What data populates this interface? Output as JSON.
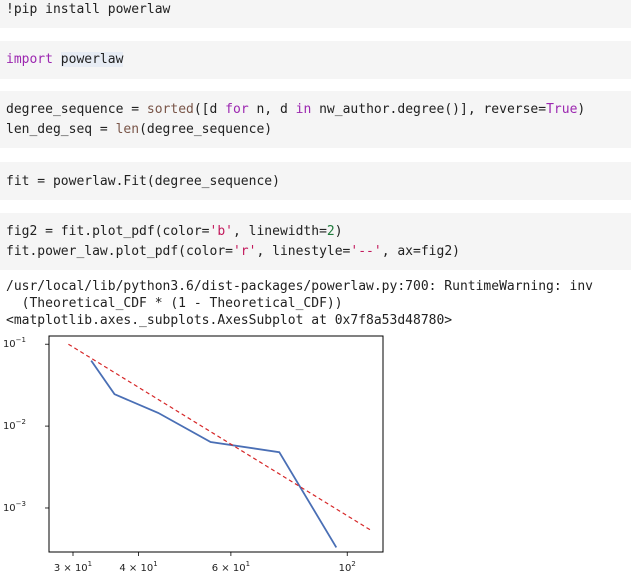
{
  "cells": {
    "c1": {
      "pre": "!pip install powerlaw"
    },
    "c2": {
      "kw": "import",
      "mod": "powerlaw"
    },
    "c3": {
      "a1": "degree_sequence = ",
      "fn_sorted": "sorted",
      "a2": "([d ",
      "kw_for": "for",
      "a3": " n, d ",
      "kw_in": "in",
      "a4": " nw_author.degree()], reverse=",
      "kw_true": "True",
      "a5": ")",
      "b1": "len_deg_seq = ",
      "fn_len": "len",
      "b2": "(degree_sequence)"
    },
    "c4": {
      "pre": "fit = powerlaw.Fit(degree_sequence)"
    },
    "c5": {
      "a1": "fig2 = fit.plot_pdf(color=",
      "s_b": "'b'",
      "a2": ", linewidth=",
      "n2": "2",
      "a3": ")",
      "b1": "fit.power_law.plot_pdf(color=",
      "s_r": "'r'",
      "b2": ", linestyle=",
      "s_ls": "'--'",
      "b3": ", ax=fig2)"
    }
  },
  "output": {
    "warning": "/usr/local/lib/python3.6/dist-packages/powerlaw.py:700: RuntimeWarning: inv",
    "cdf": "  (Theoretical_CDF * (1 - Theoretical_CDF))",
    "repr": "<matplotlib.axes._subplots.AxesSubplot at 0x7f8a53d48780>"
  },
  "chart_data": {
    "type": "line",
    "x_scale": "log",
    "y_scale": "log",
    "xlim": [
      27,
      117
    ],
    "ylim": [
      0.00029,
      0.126
    ],
    "xticks": [
      {
        "value": 30,
        "base": "3 × 10",
        "exp": "1"
      },
      {
        "value": 40,
        "base": "4 × 10",
        "exp": "1"
      },
      {
        "value": 60,
        "base": "6 × 10",
        "exp": "1"
      },
      {
        "value": 100,
        "base": "10",
        "exp": "2"
      }
    ],
    "yticks": [
      {
        "value": 0.1,
        "base": "10",
        "exp": "−1"
      },
      {
        "value": 0.01,
        "base": "10",
        "exp": "−2"
      },
      {
        "value": 0.001,
        "base": "10",
        "exp": "−3"
      }
    ],
    "grid": false,
    "series": [
      {
        "color": "#4a6fb5",
        "style": "solid",
        "x": [
          32.5,
          36.0,
          43.6,
          54.9,
          74.2,
          95.3
        ],
        "y": [
          0.063,
          0.0245,
          0.0145,
          0.0064,
          0.0048,
          0.00033
        ]
      },
      {
        "color": "#d62728",
        "style": "dashed",
        "x": [
          29.4,
          111.7
        ],
        "y": [
          0.1,
          0.00052
        ]
      }
    ]
  }
}
